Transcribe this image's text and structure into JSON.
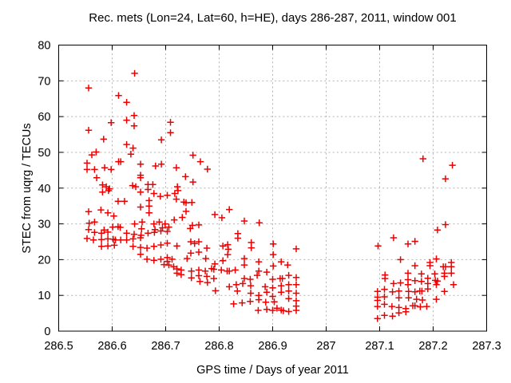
{
  "chart_data": {
    "type": "scatter",
    "title": "Rec. mets (Lon=24, Lat=60, h=HE), days 286-287, 2011, window 001",
    "xlabel": "GPS time / Days of year 2011",
    "ylabel": "STEC from uqrg / TECUs",
    "xlim": [
      286.5,
      287.3
    ],
    "ylim": [
      0,
      80
    ],
    "xtick_values": [
      286.5,
      286.6,
      286.7,
      286.8,
      286.9,
      287.0,
      287.1,
      287.2,
      287.3
    ],
    "xtick_labels": [
      "286.5",
      "286.6",
      "286.7",
      "286.8",
      "286.9",
      "287",
      "287.1",
      "287.2",
      "287.3"
    ],
    "ytick_values": [
      0,
      10,
      20,
      30,
      40,
      50,
      60,
      70,
      80
    ],
    "ytick_labels": [
      "0",
      "10",
      "20",
      "30",
      "40",
      "50",
      "60",
      "70",
      "80"
    ],
    "grid": true,
    "legend": "none",
    "marker": "plus",
    "marker_color": "#ee0000",
    "grid_color": "#b3b3b3",
    "axis_color": "#000000",
    "points": [
      [
        286.642,
        72.1
      ],
      [
        286.556,
        68.0
      ],
      [
        286.612,
        65.9
      ],
      [
        286.627,
        64.0
      ],
      [
        286.641,
        60.3
      ],
      [
        286.627,
        59.0
      ],
      [
        286.598,
        58.3
      ],
      [
        286.641,
        57.4
      ],
      [
        286.556,
        56.2
      ],
      [
        286.709,
        58.4
      ],
      [
        286.709,
        55.5
      ],
      [
        286.584,
        53.7
      ],
      [
        286.692,
        53.5
      ],
      [
        286.627,
        52.2
      ],
      [
        286.639,
        51.2
      ],
      [
        286.57,
        50.1
      ],
      [
        286.562,
        49.3
      ],
      [
        286.635,
        49.5
      ],
      [
        286.553,
        47.0
      ],
      [
        286.553,
        45.2
      ],
      [
        286.567,
        45.2
      ],
      [
        286.586,
        45.7
      ],
      [
        286.598,
        45.2
      ],
      [
        286.612,
        47.4
      ],
      [
        286.616,
        47.4
      ],
      [
        286.653,
        46.7
      ],
      [
        286.681,
        46.2
      ],
      [
        286.692,
        46.7
      ],
      [
        286.72,
        45.7
      ],
      [
        286.751,
        49.2
      ],
      [
        286.765,
        47.4
      ],
      [
        286.778,
        45.3
      ],
      [
        286.737,
        43.2
      ],
      [
        286.751,
        41.7
      ],
      [
        286.722,
        40.4
      ],
      [
        286.571,
        42.9
      ],
      [
        286.653,
        43.6
      ],
      [
        286.653,
        42.9
      ],
      [
        286.582,
        40.9
      ],
      [
        286.589,
        40.4
      ],
      [
        286.595,
        39.8
      ],
      [
        286.638,
        40.7
      ],
      [
        286.644,
        40.4
      ],
      [
        286.667,
        41.0
      ],
      [
        286.676,
        41.0
      ],
      [
        286.667,
        39.6
      ],
      [
        286.653,
        38.9
      ],
      [
        286.582,
        38.9
      ],
      [
        286.593,
        39.3
      ],
      [
        286.678,
        38.5
      ],
      [
        286.69,
        37.7
      ],
      [
        286.703,
        38.0
      ],
      [
        286.717,
        38.5
      ],
      [
        286.723,
        39.3
      ],
      [
        286.72,
        36.9
      ],
      [
        286.611,
        36.3
      ],
      [
        286.623,
        36.3
      ],
      [
        286.669,
        36.5
      ],
      [
        286.653,
        34.7
      ],
      [
        286.669,
        35.0
      ],
      [
        286.669,
        33.1
      ],
      [
        286.556,
        33.4
      ],
      [
        286.579,
        33.9
      ],
      [
        286.592,
        33.1
      ],
      [
        286.603,
        32.2
      ],
      [
        286.734,
        36.1
      ],
      [
        286.738,
        35.9
      ],
      [
        286.749,
        36.0
      ],
      [
        286.738,
        33.5
      ],
      [
        286.731,
        31.8
      ],
      [
        286.792,
        32.6
      ],
      [
        286.805,
        31.7
      ],
      [
        286.819,
        34.0
      ],
      [
        286.847,
        30.8
      ],
      [
        286.875,
        30.3
      ],
      [
        286.557,
        30.2
      ],
      [
        286.567,
        30.5
      ],
      [
        286.656,
        30.5
      ],
      [
        286.642,
        30.0
      ],
      [
        286.678,
        30.0
      ],
      [
        286.688,
        30.5
      ],
      [
        286.699,
        30.0
      ],
      [
        286.716,
        31.1
      ],
      [
        286.601,
        29.1
      ],
      [
        286.585,
        28.3
      ],
      [
        286.75,
        29.6
      ],
      [
        286.762,
        29.7
      ],
      [
        286.746,
        28.7
      ],
      [
        286.556,
        28.4
      ],
      [
        286.611,
        29.2
      ],
      [
        286.615,
        29.0
      ],
      [
        286.655,
        28.6
      ],
      [
        286.68,
        28.4
      ],
      [
        286.694,
        28.9
      ],
      [
        286.706,
        29.1
      ],
      [
        286.567,
        27.6
      ],
      [
        286.58,
        27.4
      ],
      [
        286.592,
        27.7
      ],
      [
        286.627,
        27.4
      ],
      [
        286.641,
        27.1
      ],
      [
        286.654,
        26.8
      ],
      [
        286.667,
        27.4
      ],
      [
        286.679,
        27.6
      ],
      [
        286.691,
        28.0
      ],
      [
        286.703,
        27.9
      ],
      [
        286.553,
        25.9
      ],
      [
        286.565,
        25.5
      ],
      [
        286.58,
        25.6
      ],
      [
        286.592,
        25.8
      ],
      [
        286.602,
        25.7
      ],
      [
        286.606,
        25.5
      ],
      [
        286.616,
        25.5
      ],
      [
        286.627,
        25.5
      ],
      [
        286.639,
        25.8
      ],
      [
        286.653,
        26.1
      ],
      [
        286.58,
        23.7
      ],
      [
        286.592,
        23.8
      ],
      [
        286.604,
        24.0
      ],
      [
        286.639,
        23.7
      ],
      [
        286.653,
        23.4
      ],
      [
        286.665,
        23.2
      ],
      [
        286.678,
        23.7
      ],
      [
        286.691,
        24.1
      ],
      [
        286.703,
        24.6
      ],
      [
        286.721,
        23.8
      ],
      [
        286.747,
        25.0
      ],
      [
        286.762,
        25.0
      ],
      [
        286.754,
        24.5
      ],
      [
        286.747,
        21.8
      ],
      [
        286.762,
        22.1
      ],
      [
        286.777,
        23.2
      ],
      [
        286.807,
        23.8
      ],
      [
        286.816,
        24.2
      ],
      [
        286.817,
        22.9
      ],
      [
        286.816,
        21.4
      ],
      [
        286.835,
        27.3
      ],
      [
        286.835,
        26.0
      ],
      [
        286.86,
        24.8
      ],
      [
        286.86,
        23.3
      ],
      [
        286.901,
        24.4
      ],
      [
        286.901,
        21.4
      ],
      [
        286.944,
        23.0
      ],
      [
        286.653,
        21.5
      ],
      [
        286.665,
        20.1
      ],
      [
        286.678,
        19.8
      ],
      [
        286.691,
        20.1
      ],
      [
        286.703,
        20.6
      ],
      [
        286.712,
        20.1
      ],
      [
        286.703,
        19.5
      ],
      [
        286.697,
        18.6
      ],
      [
        286.706,
        18.5
      ],
      [
        286.715,
        18.0
      ],
      [
        286.721,
        17.4
      ],
      [
        286.721,
        16.2
      ],
      [
        286.74,
        20.3
      ],
      [
        286.775,
        20.3
      ],
      [
        286.792,
        18.8
      ],
      [
        286.807,
        19.7
      ],
      [
        286.847,
        20.3
      ],
      [
        286.847,
        18.5
      ],
      [
        286.874,
        19.4
      ],
      [
        286.916,
        19.4
      ],
      [
        286.928,
        18.5
      ],
      [
        286.901,
        18.2
      ],
      [
        286.729,
        17.1
      ],
      [
        286.729,
        15.8
      ],
      [
        286.748,
        16.8
      ],
      [
        286.748,
        14.9
      ],
      [
        286.762,
        17.1
      ],
      [
        286.762,
        15.5
      ],
      [
        286.764,
        13.9
      ],
      [
        286.774,
        16.8
      ],
      [
        286.777,
        15.3
      ],
      [
        286.778,
        13.6
      ],
      [
        286.786,
        17.5
      ],
      [
        286.79,
        17.3
      ],
      [
        286.79,
        14.7
      ],
      [
        286.793,
        11.3
      ],
      [
        286.804,
        17.1
      ],
      [
        286.815,
        16.8
      ],
      [
        286.819,
        16.8
      ],
      [
        286.83,
        17.1
      ],
      [
        286.819,
        12.4
      ],
      [
        286.832,
        13.0
      ],
      [
        286.834,
        11.2
      ],
      [
        286.844,
        13.3
      ],
      [
        286.847,
        14.7
      ],
      [
        286.858,
        14.5
      ],
      [
        286.859,
        12.7
      ],
      [
        286.859,
        10.6
      ],
      [
        286.871,
        15.6
      ],
      [
        286.874,
        16.8
      ],
      [
        286.889,
        16.5
      ],
      [
        286.886,
        12.4
      ],
      [
        286.874,
        10.0
      ],
      [
        286.874,
        8.8
      ],
      [
        286.889,
        10.9
      ],
      [
        286.9,
        14.5
      ],
      [
        286.9,
        12.1
      ],
      [
        286.9,
        9.7
      ],
      [
        286.903,
        8.2
      ],
      [
        286.889,
        6.1
      ],
      [
        286.9,
        5.8
      ],
      [
        286.914,
        14.7
      ],
      [
        286.918,
        14.7
      ],
      [
        286.93,
        15.6
      ],
      [
        286.944,
        15.0
      ],
      [
        286.916,
        12.7
      ],
      [
        286.93,
        13.0
      ],
      [
        286.944,
        13.0
      ],
      [
        286.916,
        10.9
      ],
      [
        286.93,
        11.2
      ],
      [
        286.944,
        10.6
      ],
      [
        286.944,
        8.5
      ],
      [
        286.93,
        9.1
      ],
      [
        286.908,
        6.4
      ],
      [
        286.916,
        5.9
      ],
      [
        286.92,
        5.7
      ],
      [
        286.93,
        5.5
      ],
      [
        286.944,
        5.8
      ],
      [
        286.944,
        7.0
      ],
      [
        286.827,
        7.6
      ],
      [
        286.843,
        7.9
      ],
      [
        286.858,
        8.3
      ],
      [
        286.887,
        8.1
      ],
      [
        286.873,
        5.8
      ],
      [
        287.181,
        48.2
      ],
      [
        287.236,
        46.4
      ],
      [
        287.223,
        42.6
      ],
      [
        287.223,
        29.8
      ],
      [
        287.208,
        28.3
      ],
      [
        287.126,
        26.1
      ],
      [
        287.153,
        24.4
      ],
      [
        287.166,
        25.1
      ],
      [
        287.097,
        23.8
      ],
      [
        287.139,
        20.0
      ],
      [
        287.206,
        20.2
      ],
      [
        287.194,
        19.2
      ],
      [
        287.194,
        18.3
      ],
      [
        287.166,
        18.3
      ],
      [
        287.219,
        18.0
      ],
      [
        287.223,
        18.0
      ],
      [
        287.234,
        19.2
      ],
      [
        287.234,
        18.0
      ],
      [
        287.234,
        16.2
      ],
      [
        287.221,
        16.2
      ],
      [
        287.153,
        16.2
      ],
      [
        287.153,
        14.4
      ],
      [
        287.11,
        15.7
      ],
      [
        287.11,
        14.7
      ],
      [
        287.126,
        13.3
      ],
      [
        287.166,
        14.1
      ],
      [
        287.178,
        16.0
      ],
      [
        287.178,
        13.9
      ],
      [
        287.19,
        14.8
      ],
      [
        287.203,
        16.0
      ],
      [
        287.204,
        14.2
      ],
      [
        287.208,
        14.0
      ],
      [
        287.221,
        15.3
      ],
      [
        287.238,
        13.0
      ],
      [
        287.206,
        13.0
      ],
      [
        287.153,
        13.0
      ],
      [
        287.139,
        13.5
      ],
      [
        287.19,
        13.3
      ],
      [
        287.096,
        11.1
      ],
      [
        287.109,
        11.7
      ],
      [
        287.124,
        11.0
      ],
      [
        287.136,
        11.2
      ],
      [
        287.154,
        11.1
      ],
      [
        287.166,
        11.0
      ],
      [
        287.175,
        11.2
      ],
      [
        287.179,
        11.2
      ],
      [
        287.19,
        11.8
      ],
      [
        287.221,
        11.1
      ],
      [
        287.096,
        9.5
      ],
      [
        287.096,
        8.6
      ],
      [
        287.109,
        9.6
      ],
      [
        287.136,
        9.3
      ],
      [
        287.154,
        9.3
      ],
      [
        287.169,
        8.9
      ],
      [
        287.18,
        8.7
      ],
      [
        287.206,
        8.9
      ],
      [
        287.096,
        6.9
      ],
      [
        287.109,
        7.5
      ],
      [
        287.123,
        6.9
      ],
      [
        287.136,
        6.6
      ],
      [
        287.149,
        6.3
      ],
      [
        287.162,
        7.1
      ],
      [
        287.166,
        7.1
      ],
      [
        287.176,
        6.8
      ],
      [
        287.188,
        6.9
      ],
      [
        287.096,
        3.5
      ],
      [
        287.109,
        4.4
      ],
      [
        287.124,
        4.2
      ],
      [
        287.136,
        5.1
      ],
      [
        287.149,
        5.4
      ]
    ]
  }
}
